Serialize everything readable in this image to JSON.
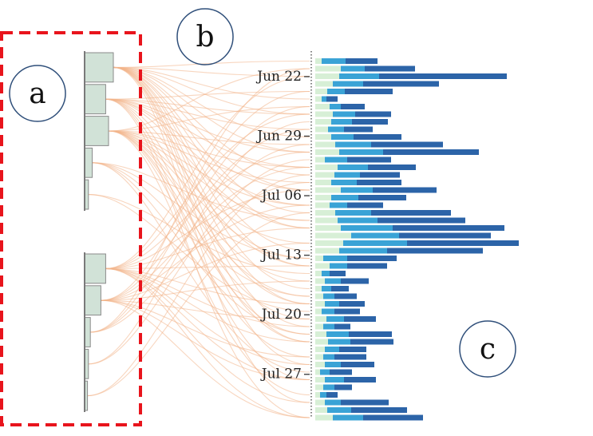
{
  "panels": [
    {
      "id": "a",
      "label": "a"
    },
    {
      "id": "b",
      "label": "b"
    },
    {
      "id": "c",
      "label": "c"
    }
  ],
  "colors": {
    "bar_light": "#d7efd6",
    "bar_mid": "#3aa3d6",
    "bar_dark": "#2c64a8",
    "cluster_box": "#d1e2d7",
    "cluster_stroke": "#8a8a8a",
    "link": "#f2b48a",
    "selection": "#e8141c",
    "circle_stroke": "#2f4f7a"
  },
  "chart_data": {
    "type": "bar",
    "orientation": "horizontal",
    "stacked": true,
    "y_axis_type": "date",
    "y_range": [
      "2020-06-19",
      "2020-08-01"
    ],
    "y_ticks": [
      "Jun 22",
      "Jun 29",
      "Jul 06",
      "Jul 13",
      "Jul 20",
      "Jul 27"
    ],
    "grid": false,
    "segments": [
      "light",
      "mid",
      "dark"
    ],
    "rows": [
      [
        8,
        30,
        40
      ],
      [
        32,
        30,
        63
      ],
      [
        30,
        50,
        160
      ],
      [
        22,
        38,
        95
      ],
      [
        15,
        22,
        60
      ],
      [
        8,
        6,
        14
      ],
      [
        18,
        14,
        30
      ],
      [
        22,
        28,
        45
      ],
      [
        20,
        26,
        45
      ],
      [
        16,
        20,
        36
      ],
      [
        20,
        28,
        60
      ],
      [
        25,
        45,
        90
      ],
      [
        30,
        55,
        120
      ],
      [
        12,
        28,
        55
      ],
      [
        28,
        38,
        60
      ],
      [
        24,
        32,
        50
      ],
      [
        20,
        32,
        56
      ],
      [
        32,
        40,
        80
      ],
      [
        20,
        34,
        60
      ],
      [
        18,
        22,
        45
      ],
      [
        25,
        45,
        100
      ],
      [
        28,
        50,
        110
      ],
      [
        32,
        65,
        140
      ],
      [
        45,
        60,
        115
      ],
      [
        35,
        80,
        140
      ],
      [
        30,
        60,
        120
      ],
      [
        10,
        30,
        62
      ],
      [
        18,
        22,
        50
      ],
      [
        8,
        10,
        20
      ],
      [
        12,
        20,
        35
      ],
      [
        8,
        12,
        22
      ],
      [
        10,
        14,
        28
      ],
      [
        12,
        18,
        32
      ],
      [
        8,
        16,
        32
      ],
      [
        14,
        22,
        40
      ],
      [
        10,
        14,
        20
      ],
      [
        14,
        28,
        54
      ],
      [
        16,
        28,
        54
      ],
      [
        12,
        18,
        34
      ],
      [
        10,
        14,
        40
      ],
      [
        12,
        20,
        42
      ],
      [
        6,
        12,
        28
      ],
      [
        12,
        24,
        40
      ],
      [
        10,
        14,
        22
      ],
      [
        6,
        8,
        14
      ],
      [
        12,
        20,
        60
      ],
      [
        15,
        30,
        70
      ],
      [
        22,
        38,
        75
      ]
    ],
    "clusters_top": [
      0.3,
      0.22,
      0.25,
      0.08,
      0.04
    ],
    "clusters_bottom": [
      0.22,
      0.17,
      0.06,
      0.04,
      0.03
    ]
  }
}
